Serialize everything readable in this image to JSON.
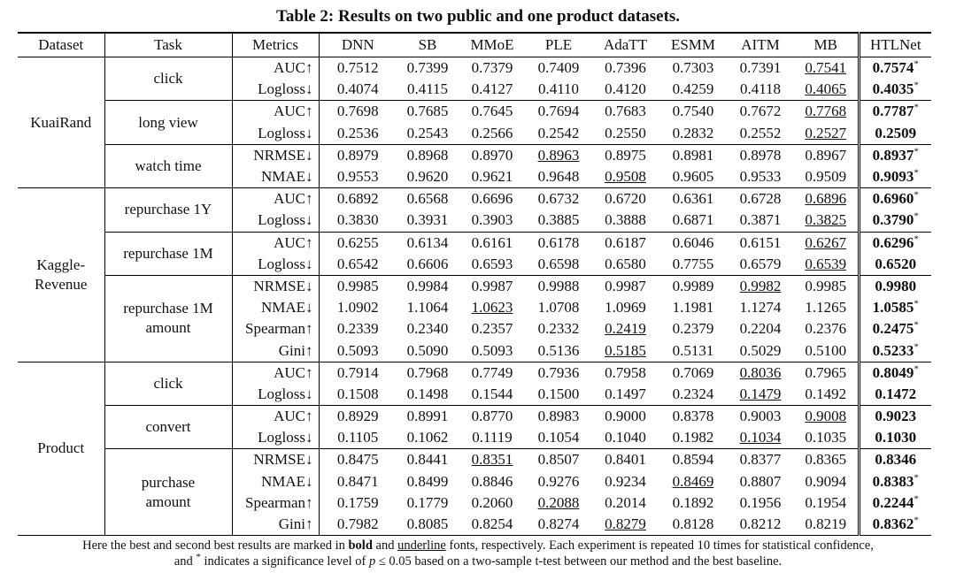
{
  "title": "Table 2: Results on two public and one product datasets.",
  "columns": [
    "Dataset",
    "Task",
    "Metrics",
    "DNN",
    "SB",
    "MMoE",
    "PLE",
    "AdaTT",
    "ESMM",
    "AITM",
    "MB",
    "HTLNet"
  ],
  "datasets": [
    {
      "name": [
        "KuaiRand"
      ],
      "tasks": [
        {
          "name": [
            "click"
          ],
          "rows": [
            {
              "metric": "AUC↑",
              "values": [
                "0.7512",
                "0.7399",
                "0.7379",
                "0.7409",
                "0.7396",
                "0.7303",
                "0.7391",
                "0.7541",
                "0.7574"
              ],
              "best": 8,
              "second": 7,
              "sig": "*"
            },
            {
              "metric": "Logloss↓",
              "values": [
                "0.4074",
                "0.4115",
                "0.4127",
                "0.4110",
                "0.4120",
                "0.4259",
                "0.4118",
                "0.4065",
                "0.4035"
              ],
              "best": 8,
              "second": 7,
              "sig": "*"
            }
          ]
        },
        {
          "name": [
            "long view"
          ],
          "rows": [
            {
              "metric": "AUC↑",
              "values": [
                "0.7698",
                "0.7685",
                "0.7645",
                "0.7694",
                "0.7683",
                "0.7540",
                "0.7672",
                "0.7768",
                "0.7787"
              ],
              "best": 8,
              "second": 7,
              "sig": "*"
            },
            {
              "metric": "Logloss↓",
              "values": [
                "0.2536",
                "0.2543",
                "0.2566",
                "0.2542",
                "0.2550",
                "0.2832",
                "0.2552",
                "0.2527",
                "0.2509"
              ],
              "best": 8,
              "second": 7
            }
          ]
        },
        {
          "name": [
            "watch time"
          ],
          "rows": [
            {
              "metric": "NRMSE↓",
              "values": [
                "0.8979",
                "0.8968",
                "0.8970",
                "0.8963",
                "0.8975",
                "0.8981",
                "0.8978",
                "0.8967",
                "0.8937"
              ],
              "best": 8,
              "second": 3,
              "sig": "*"
            },
            {
              "metric": "NMAE↓",
              "values": [
                "0.9553",
                "0.9620",
                "0.9621",
                "0.9648",
                "0.9508",
                "0.9605",
                "0.9533",
                "0.9509",
                "0.9093"
              ],
              "best": 8,
              "second": 4,
              "sig": "*"
            }
          ]
        }
      ]
    },
    {
      "name": [
        "Kaggle-",
        "Revenue"
      ],
      "tasks": [
        {
          "name": [
            "repurchase 1Y"
          ],
          "rows": [
            {
              "metric": "AUC↑",
              "values": [
                "0.6892",
                "0.6568",
                "0.6696",
                "0.6732",
                "0.6720",
                "0.6361",
                "0.6728",
                "0.6896",
                "0.6960"
              ],
              "best": 8,
              "second": 7,
              "sig": "*"
            },
            {
              "metric": "Logloss↓",
              "values": [
                "0.3830",
                "0.3931",
                "0.3903",
                "0.3885",
                "0.3888",
                "0.6871",
                "0.3871",
                "0.3825",
                "0.3790"
              ],
              "best": 8,
              "second": 7,
              "sig": "*"
            }
          ]
        },
        {
          "name": [
            "repurchase 1M"
          ],
          "rows": [
            {
              "metric": "AUC↑",
              "values": [
                "0.6255",
                "0.6134",
                "0.6161",
                "0.6178",
                "0.6187",
                "0.6046",
                "0.6151",
                "0.6267",
                "0.6296"
              ],
              "best": 8,
              "second": 7,
              "sig": "*"
            },
            {
              "metric": "Logloss↓",
              "values": [
                "0.6542",
                "0.6606",
                "0.6593",
                "0.6598",
                "0.6580",
                "0.7755",
                "0.6579",
                "0.6539",
                "0.6520"
              ],
              "best": 8,
              "second": 7
            }
          ]
        },
        {
          "name": [
            "repurchase 1M",
            "amount"
          ],
          "rows": [
            {
              "metric": "NRMSE↓",
              "values": [
                "0.9985",
                "0.9984",
                "0.9987",
                "0.9988",
                "0.9987",
                "0.9989",
                "0.9982",
                "0.9985",
                "0.9980"
              ],
              "best": 8,
              "second": 6
            },
            {
              "metric": "NMAE↓",
              "values": [
                "1.0902",
                "1.1064",
                "1.0623",
                "1.0708",
                "1.0969",
                "1.1981",
                "1.1274",
                "1.1265",
                "1.0585"
              ],
              "best": 8,
              "second": 2,
              "sig": "*"
            },
            {
              "metric": "Spearman↑",
              "values": [
                "0.2339",
                "0.2340",
                "0.2357",
                "0.2332",
                "0.2419",
                "0.2379",
                "0.2204",
                "0.2376",
                "0.2475"
              ],
              "best": 8,
              "second": 4,
              "sig": "*"
            },
            {
              "metric": "Gini↑",
              "values": [
                "0.5093",
                "0.5090",
                "0.5093",
                "0.5136",
                "0.5185",
                "0.5131",
                "0.5029",
                "0.5100",
                "0.5233"
              ],
              "best": 8,
              "second": 4,
              "sig": "*"
            }
          ]
        }
      ]
    },
    {
      "name": [
        "Product"
      ],
      "tasks": [
        {
          "name": [
            "click"
          ],
          "rows": [
            {
              "metric": "AUC↑",
              "values": [
                "0.7914",
                "0.7968",
                "0.7749",
                "0.7936",
                "0.7958",
                "0.7069",
                "0.8036",
                "0.7965",
                "0.8049"
              ],
              "best": 8,
              "second": 6,
              "sig": "*"
            },
            {
              "metric": "Logloss↓",
              "values": [
                "0.1508",
                "0.1498",
                "0.1544",
                "0.1500",
                "0.1497",
                "0.2324",
                "0.1479",
                "0.1492",
                "0.1472"
              ],
              "best": 8,
              "second": 6
            }
          ]
        },
        {
          "name": [
            "convert"
          ],
          "rows": [
            {
              "metric": "AUC↑",
              "values": [
                "0.8929",
                "0.8991",
                "0.8770",
                "0.8983",
                "0.9000",
                "0.8378",
                "0.9003",
                "0.9008",
                "0.9023"
              ],
              "best": 8,
              "second": 7
            },
            {
              "metric": "Logloss↓",
              "values": [
                "0.1105",
                "0.1062",
                "0.1119",
                "0.1054",
                "0.1040",
                "0.1982",
                "0.1034",
                "0.1035",
                "0.1030"
              ],
              "best": 8,
              "second": 6
            }
          ]
        },
        {
          "name": [
            "purchase",
            "amount"
          ],
          "rows": [
            {
              "metric": "NRMSE↓",
              "values": [
                "0.8475",
                "0.8441",
                "0.8351",
                "0.8507",
                "0.8401",
                "0.8594",
                "0.8377",
                "0.8365",
                "0.8346"
              ],
              "best": 8,
              "second": 2
            },
            {
              "metric": "NMAE↓",
              "values": [
                "0.8471",
                "0.8499",
                "0.8846",
                "0.9276",
                "0.9234",
                "0.8469",
                "0.8807",
                "0.9094",
                "0.8383"
              ],
              "best": 8,
              "second": 5,
              "sig": "*"
            },
            {
              "metric": "Spearman↑",
              "values": [
                "0.1759",
                "0.1779",
                "0.2060",
                "0.2088",
                "0.2014",
                "0.1892",
                "0.1956",
                "0.1954",
                "0.2244"
              ],
              "best": 8,
              "second": 3,
              "sig": "*"
            },
            {
              "metric": "Gini↑",
              "values": [
                "0.7982",
                "0.8085",
                "0.8254",
                "0.8274",
                "0.8279",
                "0.8128",
                "0.8212",
                "0.8219",
                "0.8362"
              ],
              "best": 8,
              "second": 4,
              "sig": "*"
            }
          ]
        }
      ]
    }
  ],
  "footnote": [
    [
      {
        "text": "Here the best and second best results are marked in "
      },
      {
        "text": "bold",
        "style": "b"
      },
      {
        "text": " and "
      },
      {
        "text": "underline",
        "style": "u"
      },
      {
        "text": " fonts, respectively. Each experiment is repeated 10 times for statistical confidence,"
      }
    ],
    [
      {
        "text": "and "
      },
      {
        "text": "*",
        "style": "sup"
      },
      {
        "text": " indicates a significance level of "
      },
      {
        "text": "p",
        "style": "i"
      },
      {
        "text": " ≤ 0.05 based on a two-sample t-test between our method and the best baseline."
      }
    ]
  ]
}
